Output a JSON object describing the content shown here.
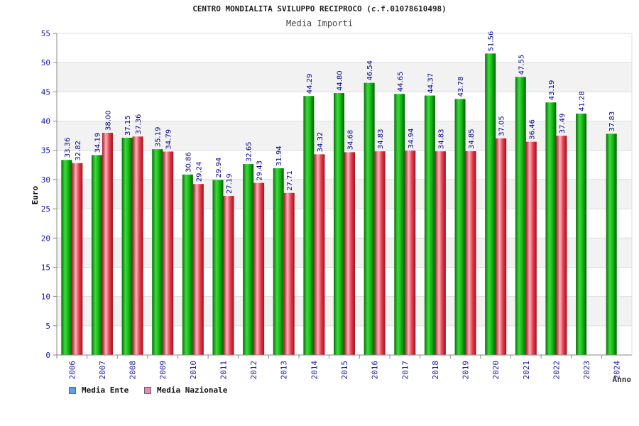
{
  "title": "CENTRO MONDIALITA SVILUPPO RECIPROCO (c.f.01078610498)",
  "colors": {
    "ente": "#14b414",
    "nazionale": "#e8404c",
    "legend_ente": "#5aa0e6",
    "legend_nazionale": "#e58ab4",
    "axis_text": "#1a1aa0",
    "value_label": "#00008b"
  },
  "legend": [
    {
      "label": "Media Ente"
    },
    {
      "label": "Media Nazionale"
    }
  ],
  "chart_data": {
    "type": "bar",
    "title": "Media Importi",
    "xlabel": "Anno",
    "ylabel": "Euro",
    "ylim": [
      0,
      55
    ],
    "yticks": [
      "0",
      "5",
      "10",
      "15",
      "20",
      "25",
      "30",
      "35",
      "40",
      "45",
      "50",
      "55"
    ],
    "categories": [
      "2006",
      "2007",
      "2008",
      "2009",
      "2010",
      "2011",
      "2012",
      "2013",
      "2014",
      "2015",
      "2016",
      "2017",
      "2018",
      "2019",
      "2020",
      "2021",
      "2022",
      "2023",
      "2024"
    ],
    "series": [
      {
        "name": "Media Ente",
        "values": [
          33.36,
          34.19,
          37.15,
          35.19,
          30.86,
          29.94,
          32.65,
          31.94,
          44.29,
          44.8,
          46.54,
          44.65,
          44.37,
          43.78,
          51.56,
          47.55,
          43.19,
          41.28,
          37.83
        ],
        "labels": [
          "33.36",
          "34.19",
          "37.15",
          "35.19",
          "30.86",
          "29.94",
          "32.65",
          "31.94",
          "44.29",
          "44.80",
          "46.54",
          "44.65",
          "44.37",
          "43.78",
          "51.56",
          "47.55",
          "43.19",
          "41.28",
          "37.83"
        ]
      },
      {
        "name": "Media Nazionale",
        "values": [
          32.82,
          38.0,
          37.36,
          34.79,
          29.24,
          27.19,
          29.43,
          27.71,
          34.32,
          34.68,
          34.83,
          34.94,
          34.83,
          34.85,
          37.05,
          36.46,
          37.49,
          null,
          null
        ],
        "labels": [
          "32.82",
          "38.00",
          "37.36",
          "34.79",
          "29.24",
          "27.19",
          "29.43",
          "27.71",
          "34.32",
          "34.68",
          "34.83",
          "34.94",
          "34.83",
          "34.85",
          "37.05",
          "36.46",
          "37.49",
          null,
          null
        ]
      }
    ],
    "grid": true,
    "legend_position": "bottom-left"
  }
}
